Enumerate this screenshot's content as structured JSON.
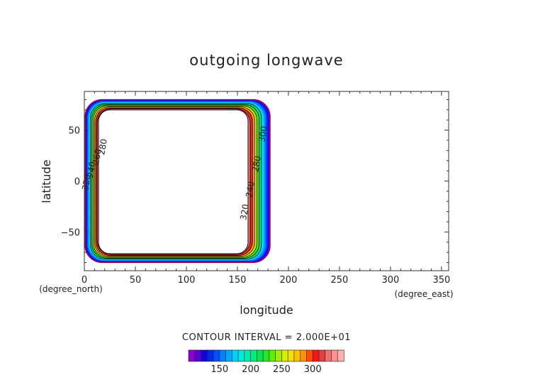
{
  "chart_data": {
    "type": "contour",
    "title": "outgoing longwave",
    "xlabel": "longitude",
    "ylabel": "latitude",
    "x_unit": "(degree_east)",
    "y_unit": "(degree_north)",
    "xlim": [
      0,
      357
    ],
    "ylim": [
      -88,
      88
    ],
    "x_ticks": [
      "0",
      "50",
      "100",
      "150",
      "200",
      "250",
      "300",
      "350"
    ],
    "y_ticks": [
      "50",
      "0",
      "−50"
    ],
    "contour_interval_text": "CONTOUR INTERVAL = 2.000E+01",
    "colorbar_ticks": [
      "150",
      "200",
      "250",
      "300"
    ],
    "colorbar_colors": [
      "#8c00cc",
      "#5a00d8",
      "#1400d8",
      "#0028ee",
      "#0050ff",
      "#0080ff",
      "#00a8ff",
      "#00d0ff",
      "#00e8e0",
      "#00ecb0",
      "#00ec80",
      "#00e650",
      "#28e628",
      "#60ee00",
      "#a0ee00",
      "#d8ec00",
      "#f0e000",
      "#ffc000",
      "#ff9000",
      "#ff5000",
      "#f01818",
      "#e04040",
      "#f07070",
      "#ff9090",
      "#ffb0b0"
    ],
    "field_region": {
      "lon": [
        0,
        180
      ],
      "lat": [
        -80,
        80
      ]
    },
    "contour_levels": [
      220,
      240,
      260,
      280,
      300,
      320
    ],
    "contour_labels": [
      "320",
      "240",
      "280",
      "300",
      "320",
      "240",
      "260",
      "280"
    ]
  }
}
